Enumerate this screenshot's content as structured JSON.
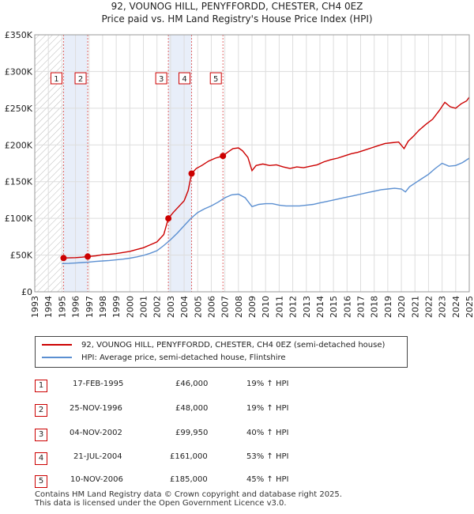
{
  "title_line1": "92, VOUNOG HILL, PENYFFORDD, CHESTER, CH4 0EZ",
  "title_line2": "Price paid vs. HM Land Registry's House Price Index (HPI)",
  "legend": {
    "property": "92, VOUNOG HILL, PENYFFORDD, CHESTER, CH4 0EZ (semi-detached house)",
    "hpi": "HPI: Average price, semi-detached house, Flintshire",
    "property_color": "#cc0000",
    "hpi_color": "#5b8fd1"
  },
  "sales": [
    {
      "num": "1",
      "date": "17-FEB-1995",
      "price": "£46,000",
      "hpi": "19% ↑ HPI"
    },
    {
      "num": "2",
      "date": "25-NOV-1996",
      "price": "£48,000",
      "hpi": "19% ↑ HPI"
    },
    {
      "num": "3",
      "date": "04-NOV-2002",
      "price": "£99,950",
      "hpi": "40% ↑ HPI"
    },
    {
      "num": "4",
      "date": "21-JUL-2004",
      "price": "£161,000",
      "hpi": "53% ↑ HPI"
    },
    {
      "num": "5",
      "date": "10-NOV-2006",
      "price": "£185,000",
      "hpi": "45% ↑ HPI"
    }
  ],
  "footer_line1": "Contains HM Land Registry data © Crown copyright and database right 2025.",
  "footer_line2": "This data is licensed under the Open Government Licence v3.0.",
  "chart_data": {
    "type": "line",
    "xlim": [
      1993,
      2025
    ],
    "ylim": [
      0,
      350000
    ],
    "y_ticks": [
      0,
      50000,
      100000,
      150000,
      200000,
      250000,
      300000,
      350000
    ],
    "y_tick_labels": [
      "£0",
      "£50K",
      "£100K",
      "£150K",
      "£200K",
      "£250K",
      "£300K",
      "£350K"
    ],
    "x_ticks": [
      1993,
      1994,
      1995,
      1996,
      1997,
      1998,
      1999,
      2000,
      2001,
      2002,
      2003,
      2004,
      2005,
      2006,
      2007,
      2008,
      2009,
      2010,
      2011,
      2012,
      2013,
      2014,
      2015,
      2016,
      2017,
      2018,
      2019,
      2020,
      2021,
      2022,
      2023,
      2024,
      2025
    ],
    "grid": true,
    "hatched_region": [
      1993,
      1995.12
    ],
    "shaded_spans": [
      [
        1995.12,
        1996.9
      ],
      [
        2002.84,
        2004.55
      ]
    ],
    "sale_markers": [
      {
        "label": "1",
        "x": 1995.12,
        "y": 46000
      },
      {
        "label": "2",
        "x": 1996.9,
        "y": 48000
      },
      {
        "label": "3",
        "x": 2002.84,
        "y": 99950
      },
      {
        "label": "4",
        "x": 2004.55,
        "y": 161000
      },
      {
        "label": "5",
        "x": 2006.86,
        "y": 185000
      }
    ],
    "series": [
      {
        "name": "92, VOUNOG HILL, PENYFFORDD, CHESTER, CH4 0EZ (semi-detached house)",
        "color": "#cc0000",
        "points": [
          [
            1995.12,
            46000
          ],
          [
            1995.5,
            46200
          ],
          [
            1996,
            46500
          ],
          [
            1996.5,
            47200
          ],
          [
            1996.9,
            48000
          ],
          [
            1997.5,
            49000
          ],
          [
            1998,
            50500
          ],
          [
            1998.5,
            51000
          ],
          [
            1999,
            52000
          ],
          [
            1999.5,
            53500
          ],
          [
            2000,
            55000
          ],
          [
            2000.5,
            57500
          ],
          [
            2001,
            60000
          ],
          [
            2001.5,
            64000
          ],
          [
            2002,
            68000
          ],
          [
            2002.5,
            78000
          ],
          [
            2002.84,
            99950
          ],
          [
            2003.2,
            108000
          ],
          [
            2003.6,
            116000
          ],
          [
            2004,
            124000
          ],
          [
            2004.3,
            138000
          ],
          [
            2004.55,
            161000
          ],
          [
            2004.9,
            168000
          ],
          [
            2005.3,
            172000
          ],
          [
            2005.8,
            178000
          ],
          [
            2006.3,
            182000
          ],
          [
            2006.86,
            185000
          ],
          [
            2007.2,
            190000
          ],
          [
            2007.6,
            195000
          ],
          [
            2008,
            196000
          ],
          [
            2008.3,
            192000
          ],
          [
            2008.7,
            183000
          ],
          [
            2009,
            165000
          ],
          [
            2009.3,
            172000
          ],
          [
            2009.8,
            174000
          ],
          [
            2010.3,
            172000
          ],
          [
            2010.8,
            173000
          ],
          [
            2011.3,
            170000
          ],
          [
            2011.8,
            168000
          ],
          [
            2012.3,
            170000
          ],
          [
            2012.8,
            169000
          ],
          [
            2013.3,
            171000
          ],
          [
            2013.8,
            173000
          ],
          [
            2014.3,
            177000
          ],
          [
            2014.8,
            180000
          ],
          [
            2015.3,
            182000
          ],
          [
            2015.8,
            185000
          ],
          [
            2016.3,
            188000
          ],
          [
            2016.8,
            190000
          ],
          [
            2017.3,
            193000
          ],
          [
            2017.8,
            196000
          ],
          [
            2018.3,
            199000
          ],
          [
            2018.8,
            202000
          ],
          [
            2019.3,
            203000
          ],
          [
            2019.8,
            204000
          ],
          [
            2020.2,
            195000
          ],
          [
            2020.5,
            205000
          ],
          [
            2020.9,
            212000
          ],
          [
            2021.3,
            220000
          ],
          [
            2021.8,
            228000
          ],
          [
            2022.3,
            235000
          ],
          [
            2022.8,
            247000
          ],
          [
            2023.2,
            258000
          ],
          [
            2023.6,
            252000
          ],
          [
            2024,
            250000
          ],
          [
            2024.4,
            256000
          ],
          [
            2024.8,
            260000
          ],
          [
            2025,
            265000
          ]
        ]
      },
      {
        "name": "HPI: Average price, semi-detached house, Flintshire",
        "color": "#5b8fd1",
        "points": [
          [
            1995,
            38500
          ],
          [
            1995.5,
            38700
          ],
          [
            1996,
            39200
          ],
          [
            1996.5,
            39800
          ],
          [
            1997,
            40500
          ],
          [
            1997.5,
            41300
          ],
          [
            1998,
            42000
          ],
          [
            1998.5,
            42700
          ],
          [
            1999,
            43500
          ],
          [
            1999.5,
            44500
          ],
          [
            2000,
            45800
          ],
          [
            2000.5,
            47500
          ],
          [
            2001,
            49500
          ],
          [
            2001.5,
            52500
          ],
          [
            2002,
            56000
          ],
          [
            2002.5,
            63000
          ],
          [
            2003,
            71000
          ],
          [
            2003.5,
            80000
          ],
          [
            2004,
            90000
          ],
          [
            2004.5,
            100000
          ],
          [
            2005,
            108000
          ],
          [
            2005.5,
            113000
          ],
          [
            2006,
            117000
          ],
          [
            2006.5,
            122000
          ],
          [
            2007,
            128000
          ],
          [
            2007.5,
            132000
          ],
          [
            2008,
            133000
          ],
          [
            2008.5,
            128000
          ],
          [
            2009,
            116000
          ],
          [
            2009.5,
            119000
          ],
          [
            2010,
            120000
          ],
          [
            2010.5,
            120000
          ],
          [
            2011,
            118000
          ],
          [
            2011.5,
            117000
          ],
          [
            2012,
            117000
          ],
          [
            2012.5,
            117000
          ],
          [
            2013,
            118000
          ],
          [
            2013.5,
            119000
          ],
          [
            2014,
            121000
          ],
          [
            2014.5,
            123000
          ],
          [
            2015,
            125000
          ],
          [
            2015.5,
            127000
          ],
          [
            2016,
            129000
          ],
          [
            2016.5,
            131000
          ],
          [
            2017,
            133000
          ],
          [
            2017.5,
            135000
          ],
          [
            2018,
            137000
          ],
          [
            2018.5,
            139000
          ],
          [
            2019,
            140000
          ],
          [
            2019.5,
            141000
          ],
          [
            2020,
            140000
          ],
          [
            2020.3,
            136000
          ],
          [
            2020.6,
            143000
          ],
          [
            2021,
            148000
          ],
          [
            2021.5,
            154000
          ],
          [
            2022,
            160000
          ],
          [
            2022.5,
            168000
          ],
          [
            2023,
            175000
          ],
          [
            2023.5,
            171000
          ],
          [
            2024,
            172000
          ],
          [
            2024.5,
            176000
          ],
          [
            2025,
            182000
          ]
        ]
      }
    ]
  }
}
